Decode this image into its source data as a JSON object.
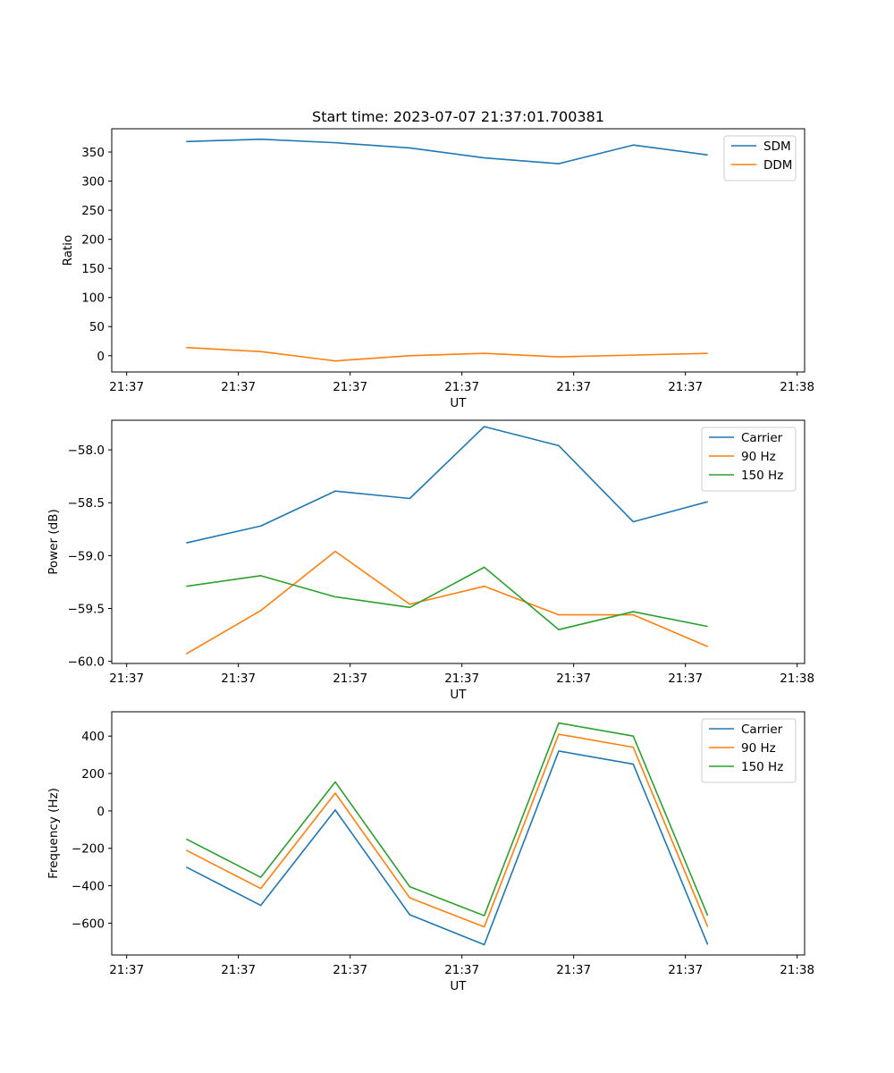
{
  "figure": {
    "title": "Start time: 2023-07-07 21:37:01.700381"
  },
  "colors": {
    "blue": "#1f77b4",
    "orange": "#ff7f0e",
    "green": "#2ca02c"
  },
  "chart_data": [
    {
      "type": "line",
      "title": "Start time: 2023-07-07 21:37:01.700381",
      "xlabel": "UT",
      "ylabel": "Ratio",
      "x": [
        1,
        2,
        3,
        4,
        5,
        6,
        7,
        8
      ],
      "xlim": [
        0,
        9.3
      ],
      "x_ticks": [
        0.2,
        1.7,
        3.2,
        4.7,
        6.2,
        7.7,
        9.2
      ],
      "x_tick_labels": [
        "21:37",
        "21:37",
        "21:37",
        "21:37",
        "21:37",
        "21:37",
        "21:38"
      ],
      "ylim": [
        -28,
        390
      ],
      "y_ticks": [
        0,
        50,
        100,
        150,
        200,
        250,
        300,
        350
      ],
      "y_tick_labels": [
        "0",
        "50",
        "100",
        "150",
        "200",
        "250",
        "300",
        "350"
      ],
      "legend": "top-right",
      "series": [
        {
          "name": "SDM",
          "color": "blue",
          "values": [
            368,
            372,
            366,
            357,
            340,
            330,
            362,
            345
          ]
        },
        {
          "name": "DDM",
          "color": "orange",
          "values": [
            14,
            7,
            -9,
            0,
            4,
            -2,
            1,
            4
          ]
        }
      ]
    },
    {
      "type": "line",
      "title": "",
      "xlabel": "UT",
      "ylabel": "Power (dB)",
      "x": [
        1,
        2,
        3,
        4,
        5,
        6,
        7,
        8
      ],
      "xlim": [
        0,
        9.3
      ],
      "x_ticks": [
        0.2,
        1.7,
        3.2,
        4.7,
        6.2,
        7.7,
        9.2
      ],
      "x_tick_labels": [
        "21:37",
        "21:37",
        "21:37",
        "21:37",
        "21:37",
        "21:37",
        "21:38"
      ],
      "ylim": [
        -60.02,
        -57.72
      ],
      "y_ticks": [
        -60.0,
        -59.5,
        -59.0,
        -58.5,
        -58.0
      ],
      "y_tick_labels": [
        "−60.0",
        "−59.5",
        "−59.0",
        "−58.5",
        "−58.0"
      ],
      "legend": "top-right",
      "series": [
        {
          "name": "Carrier",
          "color": "blue",
          "values": [
            -58.88,
            -58.72,
            -58.39,
            -58.46,
            -57.78,
            -57.96,
            -58.68,
            -58.49
          ]
        },
        {
          "name": "90 Hz",
          "color": "orange",
          "values": [
            -59.93,
            -59.52,
            -58.96,
            -59.46,
            -59.29,
            -59.56,
            -59.56,
            -59.86
          ]
        },
        {
          "name": "150 Hz",
          "color": "green",
          "values": [
            -59.29,
            -59.19,
            -59.39,
            -59.49,
            -59.11,
            -59.7,
            -59.53,
            -59.67
          ]
        }
      ]
    },
    {
      "type": "line",
      "title": "",
      "xlabel": "UT",
      "ylabel": "Frequency (Hz)",
      "x": [
        1,
        2,
        3,
        4,
        5,
        6,
        7,
        8
      ],
      "xlim": [
        0,
        9.3
      ],
      "x_ticks": [
        0.2,
        1.7,
        3.2,
        4.7,
        6.2,
        7.7,
        9.2
      ],
      "x_tick_labels": [
        "21:37",
        "21:37",
        "21:37",
        "21:37",
        "21:37",
        "21:37",
        "21:38"
      ],
      "ylim": [
        -770,
        530
      ],
      "y_ticks": [
        -600,
        -400,
        -200,
        0,
        200,
        400
      ],
      "y_tick_labels": [
        "−600",
        "−400",
        "−200",
        "0",
        "200",
        "400"
      ],
      "legend": "top-right",
      "series": [
        {
          "name": "Carrier",
          "color": "blue",
          "values": [
            -300,
            -505,
            5,
            -555,
            -715,
            320,
            250,
            -715
          ]
        },
        {
          "name": "90 Hz",
          "color": "orange",
          "values": [
            -210,
            -415,
            95,
            -465,
            -620,
            410,
            340,
            -620
          ]
        },
        {
          "name": "150 Hz",
          "color": "green",
          "values": [
            -150,
            -355,
            155,
            -405,
            -560,
            470,
            400,
            -560
          ]
        }
      ]
    }
  ]
}
